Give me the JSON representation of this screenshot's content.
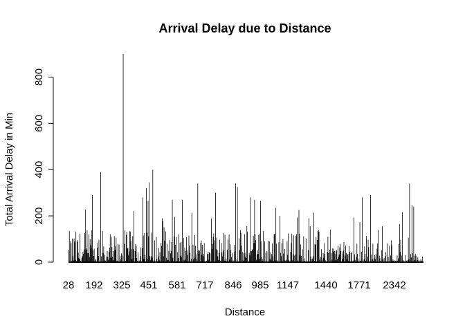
{
  "chart_data": {
    "type": "bar",
    "title": "Arrival Delay due to Distance",
    "xlabel": "Distance",
    "ylabel": "Total Arrival Delay in Min",
    "ylim": [
      0,
      900
    ],
    "yticks": [
      0,
      200,
      400,
      600,
      800
    ],
    "x_tick_labels": [
      "28",
      "192",
      "325",
      "451",
      "581",
      "717",
      "846",
      "985",
      "1147",
      "1440",
      "1771",
      "2342"
    ],
    "bar_count": 600,
    "bar_color": "#000000",
    "grid": false,
    "notable_bars": [
      {
        "index": 1,
        "value": 135
      },
      {
        "index": 40,
        "value": 290
      },
      {
        "index": 54,
        "value": 390
      },
      {
        "index": 92,
        "value": 900
      },
      {
        "index": 110,
        "value": 220
      },
      {
        "index": 125,
        "value": 280
      },
      {
        "index": 131,
        "value": 320
      },
      {
        "index": 134,
        "value": 265
      },
      {
        "index": 136,
        "value": 345
      },
      {
        "index": 142,
        "value": 400
      },
      {
        "index": 159,
        "value": 178
      },
      {
        "index": 175,
        "value": 270
      },
      {
        "index": 192,
        "value": 270
      },
      {
        "index": 218,
        "value": 340
      },
      {
        "index": 248,
        "value": 300
      },
      {
        "index": 282,
        "value": 340
      },
      {
        "index": 285,
        "value": 325
      },
      {
        "index": 307,
        "value": 280
      },
      {
        "index": 314,
        "value": 270
      },
      {
        "index": 324,
        "value": 265
      },
      {
        "index": 350,
        "value": 235
      },
      {
        "index": 357,
        "value": 200
      },
      {
        "index": 389,
        "value": 225
      },
      {
        "index": 408,
        "value": 155
      },
      {
        "index": 438,
        "value": 110
      },
      {
        "index": 496,
        "value": 280
      },
      {
        "index": 510,
        "value": 290
      },
      {
        "index": 559,
        "value": 165
      },
      {
        "index": 576,
        "value": 340
      },
      {
        "index": 580,
        "value": 245
      },
      {
        "index": 583,
        "value": 240
      }
    ]
  }
}
